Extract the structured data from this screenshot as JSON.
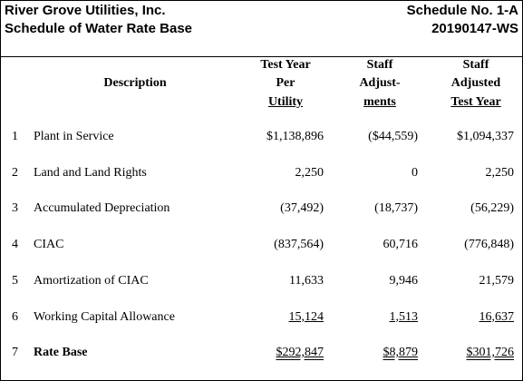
{
  "header": {
    "company": "River Grove Utilities, Inc.",
    "schedule_title": "Schedule of Water Rate Base",
    "schedule_no": "Schedule No. 1-A",
    "docket": "20190147-WS"
  },
  "table": {
    "columns": [
      [
        "Description"
      ],
      [
        "Test Year",
        "Per",
        "Utility"
      ],
      [
        "Staff",
        "Adjust-",
        "ments"
      ],
      [
        "Staff",
        "Adjusted",
        "Test Year"
      ]
    ],
    "rows": [
      [
        "1",
        "Plant in Service",
        "$1,138,896",
        "($44,559)",
        "$1,094,337"
      ],
      [
        "2",
        "Land and Land Rights",
        "2,250",
        "0",
        "2,250"
      ],
      [
        "3",
        "Accumulated Depreciation",
        "(37,492)",
        "(18,737)",
        "(56,229)"
      ],
      [
        "4",
        "CIAC",
        "(837,564)",
        "60,716",
        "(776,848)"
      ],
      [
        "5",
        "Amortization of CIAC",
        "11,633",
        "9,946",
        "21,579"
      ],
      [
        "6",
        "Working Capital Allowance",
        "15,124",
        "1,513",
        "16,637"
      ],
      [
        "7",
        "Rate Base",
        "$292,847",
        "$8,879",
        "$301,726"
      ]
    ]
  }
}
